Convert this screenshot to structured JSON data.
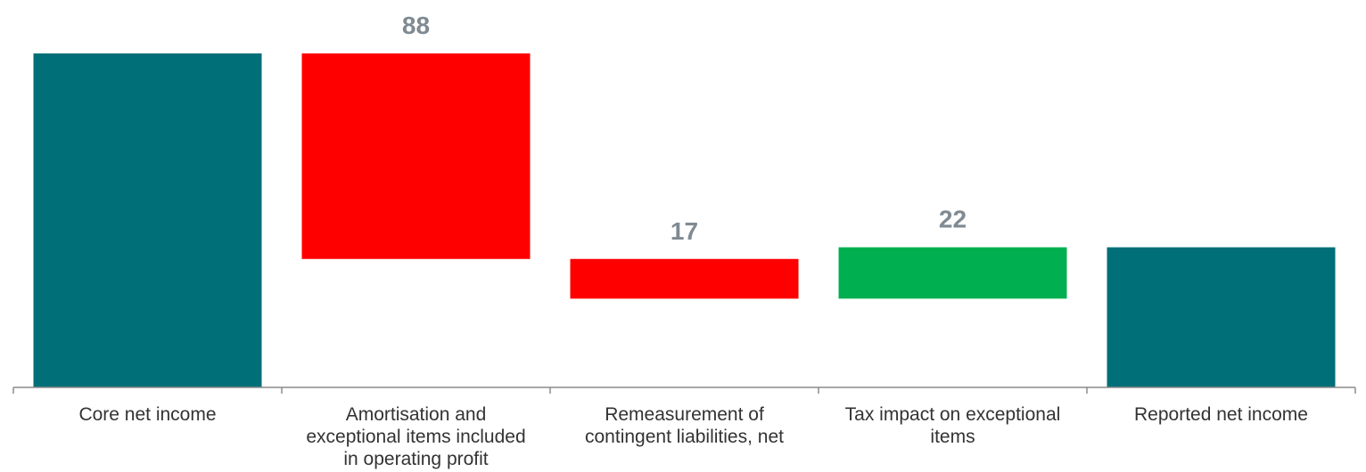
{
  "chart_data": {
    "type": "waterfall",
    "title": "",
    "xlabel": "",
    "ylabel": "",
    "categories": [
      [
        "Core net income"
      ],
      [
        "Amortisation and",
        "exceptional items included",
        "in operating profit"
      ],
      [
        "Remeasurement of",
        "contingent liabilities, net"
      ],
      [
        "Tax impact on exceptional",
        "items"
      ],
      [
        "Reported net income"
      ]
    ],
    "steps": [
      {
        "kind": "total",
        "value": 143,
        "label": ""
      },
      {
        "kind": "decrease",
        "value": 88,
        "label": "88"
      },
      {
        "kind": "decrease",
        "value": 17,
        "label": "17"
      },
      {
        "kind": "increase",
        "value": 22,
        "label": "22"
      },
      {
        "kind": "total",
        "value": 60,
        "label": ""
      }
    ],
    "ylim": [
      0,
      150
    ],
    "colors": {
      "total": "#006f78",
      "decrease": "#ff0000",
      "increase": "#00b050",
      "axis": "#8c8c8c",
      "value_label": "#7f8a92",
      "category_label": "#333333"
    },
    "grid": false,
    "legend": "none"
  }
}
